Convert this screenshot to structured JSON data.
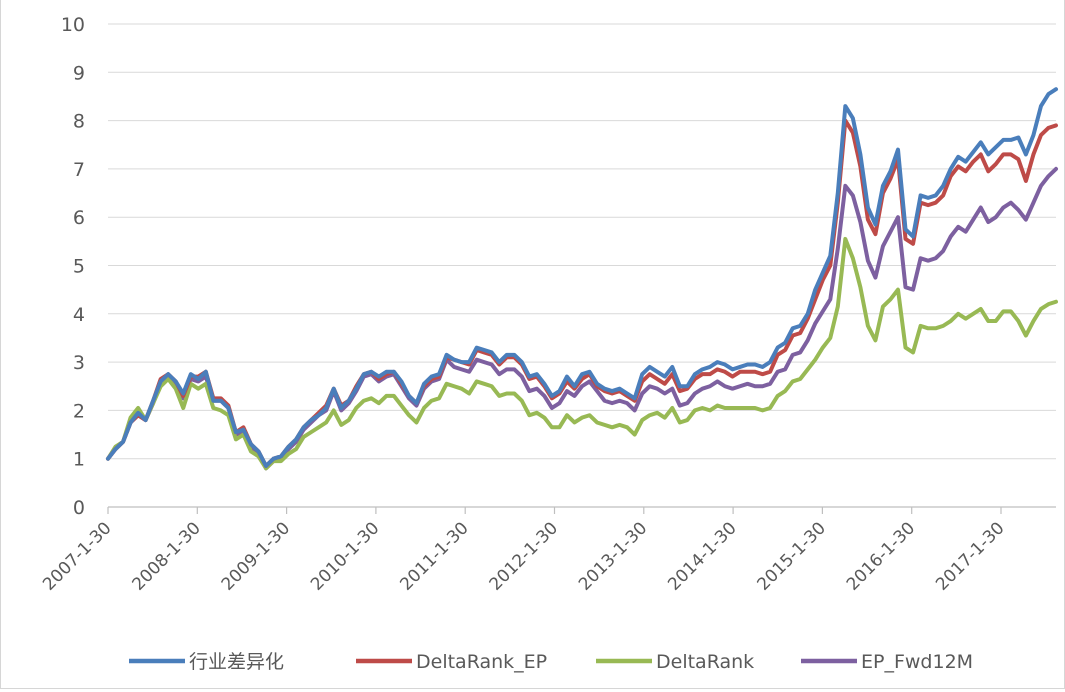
{
  "chart_data": {
    "type": "line",
    "title": "",
    "xlabel": "",
    "ylabel": "",
    "ylim": [
      0,
      10
    ],
    "yticks": [
      "0",
      "1",
      "2",
      "3",
      "4",
      "5",
      "6",
      "7",
      "8",
      "9",
      "10"
    ],
    "xticks": [
      "2007-1-30",
      "2008-1-30",
      "2009-1-30",
      "2010-1-30",
      "2011-1-30",
      "2012-1-30",
      "2013-1-30",
      "2014-1-30",
      "2015-1-30",
      "2016-1-30",
      "2017-1-30"
    ],
    "grid": true,
    "legend_position": "bottom",
    "series": [
      {
        "name": "行业差异化",
        "color": "#4a7ebb",
        "values": [
          1.0,
          1.2,
          1.35,
          1.75,
          1.95,
          1.8,
          2.2,
          2.6,
          2.75,
          2.6,
          2.35,
          2.75,
          2.65,
          2.8,
          2.2,
          2.2,
          2.05,
          1.55,
          1.6,
          1.3,
          1.15,
          0.85,
          1.0,
          1.05,
          1.25,
          1.4,
          1.65,
          1.8,
          1.9,
          2.05,
          2.45,
          2.05,
          2.2,
          2.45,
          2.75,
          2.8,
          2.7,
          2.8,
          2.8,
          2.6,
          2.3,
          2.15,
          2.55,
          2.7,
          2.75,
          3.15,
          3.05,
          3.0,
          3.0,
          3.3,
          3.25,
          3.2,
          3.0,
          3.15,
          3.15,
          3.0,
          2.7,
          2.75,
          2.55,
          2.3,
          2.4,
          2.7,
          2.5,
          2.75,
          2.8,
          2.55,
          2.45,
          2.4,
          2.45,
          2.35,
          2.25,
          2.75,
          2.9,
          2.8,
          2.7,
          2.9,
          2.5,
          2.5,
          2.75,
          2.85,
          2.9,
          3.0,
          2.95,
          2.85,
          2.9,
          2.95,
          2.95,
          2.9,
          3.0,
          3.3,
          3.4,
          3.7,
          3.75,
          4.0,
          4.5,
          4.85,
          5.2,
          6.5,
          8.3,
          8.05,
          7.3,
          6.2,
          5.85,
          6.65,
          6.95,
          7.4,
          5.75,
          5.6,
          6.45,
          6.4,
          6.45,
          6.65,
          7.0,
          7.25,
          7.15,
          7.35,
          7.55,
          7.3,
          7.45,
          7.6,
          7.6,
          7.65,
          7.3,
          7.7,
          8.3,
          8.55,
          8.65
        ]
      },
      {
        "name": "DeltaRank_EP",
        "color": "#be4b48",
        "values": [
          1.0,
          1.2,
          1.35,
          1.75,
          1.9,
          1.8,
          2.2,
          2.65,
          2.75,
          2.6,
          2.3,
          2.7,
          2.7,
          2.8,
          2.25,
          2.25,
          2.1,
          1.55,
          1.65,
          1.3,
          1.15,
          0.85,
          1.0,
          1.05,
          1.25,
          1.4,
          1.65,
          1.8,
          1.95,
          2.1,
          2.45,
          2.1,
          2.2,
          2.5,
          2.75,
          2.8,
          2.65,
          2.75,
          2.8,
          2.55,
          2.3,
          2.15,
          2.5,
          2.65,
          2.7,
          3.1,
          3.05,
          3.0,
          2.95,
          3.25,
          3.2,
          3.15,
          2.95,
          3.1,
          3.1,
          2.95,
          2.65,
          2.7,
          2.5,
          2.25,
          2.35,
          2.6,
          2.45,
          2.65,
          2.75,
          2.5,
          2.4,
          2.35,
          2.4,
          2.3,
          2.2,
          2.6,
          2.75,
          2.65,
          2.55,
          2.75,
          2.4,
          2.45,
          2.65,
          2.75,
          2.75,
          2.85,
          2.8,
          2.7,
          2.8,
          2.8,
          2.8,
          2.75,
          2.8,
          3.15,
          3.25,
          3.55,
          3.6,
          3.9,
          4.3,
          4.7,
          5.0,
          6.3,
          8.0,
          7.75,
          7.05,
          5.95,
          5.65,
          6.5,
          6.8,
          7.2,
          5.55,
          5.45,
          6.3,
          6.25,
          6.3,
          6.45,
          6.85,
          7.05,
          6.95,
          7.15,
          7.3,
          6.95,
          7.1,
          7.3,
          7.3,
          7.2,
          6.75,
          7.3,
          7.7,
          7.85,
          7.9
        ]
      },
      {
        "name": "DeltaRank",
        "color": "#98b954",
        "values": [
          1.0,
          1.25,
          1.35,
          1.85,
          2.05,
          1.8,
          2.15,
          2.5,
          2.65,
          2.45,
          2.05,
          2.55,
          2.45,
          2.55,
          2.05,
          2.0,
          1.9,
          1.4,
          1.5,
          1.15,
          1.05,
          0.8,
          0.95,
          0.95,
          1.1,
          1.2,
          1.45,
          1.55,
          1.65,
          1.75,
          2.0,
          1.7,
          1.8,
          2.05,
          2.2,
          2.25,
          2.15,
          2.3,
          2.3,
          2.1,
          1.9,
          1.75,
          2.05,
          2.2,
          2.25,
          2.55,
          2.5,
          2.45,
          2.35,
          2.6,
          2.55,
          2.5,
          2.3,
          2.35,
          2.35,
          2.2,
          1.9,
          1.95,
          1.85,
          1.65,
          1.65,
          1.9,
          1.75,
          1.85,
          1.9,
          1.75,
          1.7,
          1.65,
          1.7,
          1.65,
          1.5,
          1.8,
          1.9,
          1.95,
          1.85,
          2.05,
          1.75,
          1.8,
          2.0,
          2.05,
          2.0,
          2.1,
          2.05,
          2.05,
          2.05,
          2.05,
          2.05,
          2.0,
          2.05,
          2.3,
          2.4,
          2.6,
          2.65,
          2.85,
          3.05,
          3.3,
          3.5,
          4.15,
          5.55,
          5.15,
          4.55,
          3.75,
          3.45,
          4.15,
          4.3,
          4.5,
          3.3,
          3.2,
          3.75,
          3.7,
          3.7,
          3.75,
          3.85,
          4.0,
          3.9,
          4.0,
          4.1,
          3.85,
          3.85,
          4.05,
          4.05,
          3.85,
          3.55,
          3.85,
          4.1,
          4.2,
          4.25
        ]
      },
      {
        "name": "EP_Fwd12M",
        "color": "#7d60a0",
        "values": [
          1.0,
          1.2,
          1.35,
          1.75,
          1.9,
          1.8,
          2.15,
          2.55,
          2.7,
          2.55,
          2.25,
          2.65,
          2.6,
          2.7,
          2.2,
          2.2,
          2.05,
          1.5,
          1.55,
          1.25,
          1.1,
          0.8,
          0.95,
          1.0,
          1.2,
          1.35,
          1.6,
          1.75,
          1.9,
          2.0,
          2.4,
          2.0,
          2.15,
          2.4,
          2.7,
          2.75,
          2.6,
          2.7,
          2.75,
          2.5,
          2.25,
          2.1,
          2.45,
          2.6,
          2.65,
          3.05,
          2.9,
          2.85,
          2.8,
          3.05,
          3.0,
          2.95,
          2.75,
          2.85,
          2.85,
          2.7,
          2.4,
          2.45,
          2.3,
          2.05,
          2.15,
          2.4,
          2.3,
          2.5,
          2.6,
          2.4,
          2.2,
          2.15,
          2.2,
          2.15,
          2.0,
          2.35,
          2.5,
          2.45,
          2.35,
          2.45,
          2.1,
          2.15,
          2.35,
          2.45,
          2.5,
          2.6,
          2.5,
          2.45,
          2.5,
          2.55,
          2.5,
          2.5,
          2.55,
          2.8,
          2.85,
          3.15,
          3.2,
          3.45,
          3.8,
          4.05,
          4.3,
          5.35,
          6.65,
          6.45,
          5.9,
          5.1,
          4.75,
          5.4,
          5.7,
          6.0,
          4.55,
          4.5,
          5.15,
          5.1,
          5.15,
          5.3,
          5.6,
          5.8,
          5.7,
          5.95,
          6.2,
          5.9,
          6.0,
          6.2,
          6.3,
          6.15,
          5.95,
          6.3,
          6.65,
          6.85,
          7.0
        ]
      }
    ]
  }
}
